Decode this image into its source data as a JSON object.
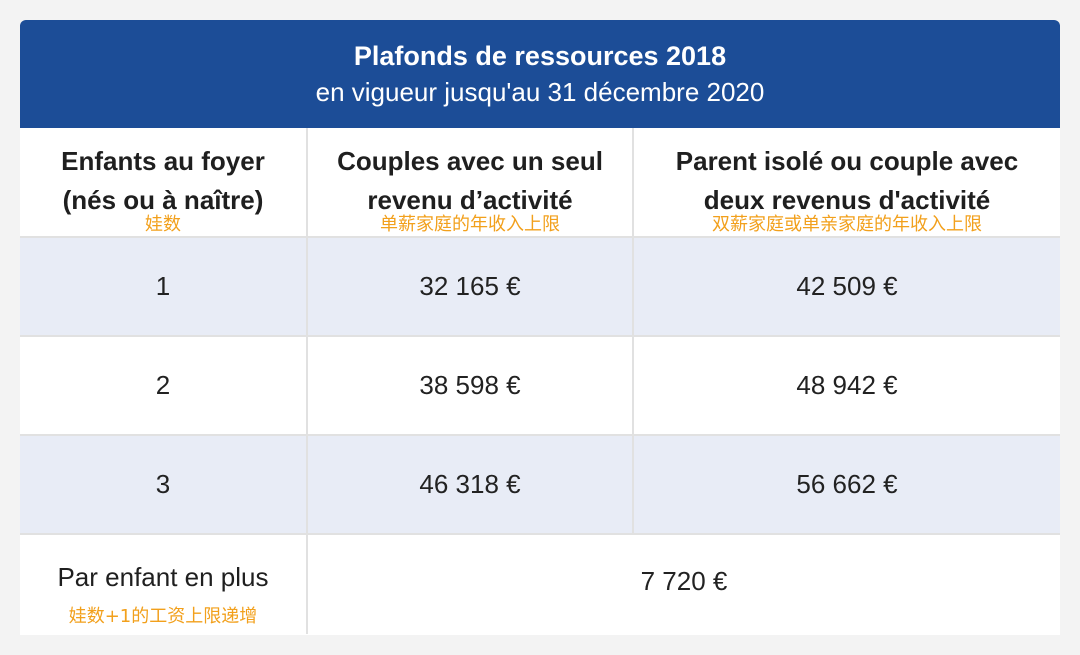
{
  "title": {
    "line1": "Plafonds de ressources 2018",
    "line2": "en vigueur jusqu'au 31 décembre 2020"
  },
  "headers": [
    {
      "line1": "Enfants au foyer",
      "line2": "(nés ou à naître)",
      "note": "娃数"
    },
    {
      "line1": "Couples avec un seul",
      "line2": "revenu d’activité",
      "note": "单薪家庭的年收入上限"
    },
    {
      "line1": "Parent isolé ou couple avec",
      "line2": "deux revenus d'activité",
      "note": "双薪家庭或单亲家庭的年收入上限"
    }
  ],
  "rows": [
    {
      "children": "1",
      "single_income": "32 165 €",
      "double_income": "42 509 €"
    },
    {
      "children": "2",
      "single_income": "38 598 €",
      "double_income": "48 942 €"
    },
    {
      "children": "3",
      "single_income": "46 318 €",
      "double_income": "56 662 €"
    }
  ],
  "extra": {
    "label": "Par enfant en plus",
    "note": "娃数+1的工资上限递增",
    "value": "7 720  €"
  },
  "colors": {
    "header_blue": "#1c4d97",
    "row_tint": "#e8ecf6",
    "note_orange": "#f2a01c"
  }
}
